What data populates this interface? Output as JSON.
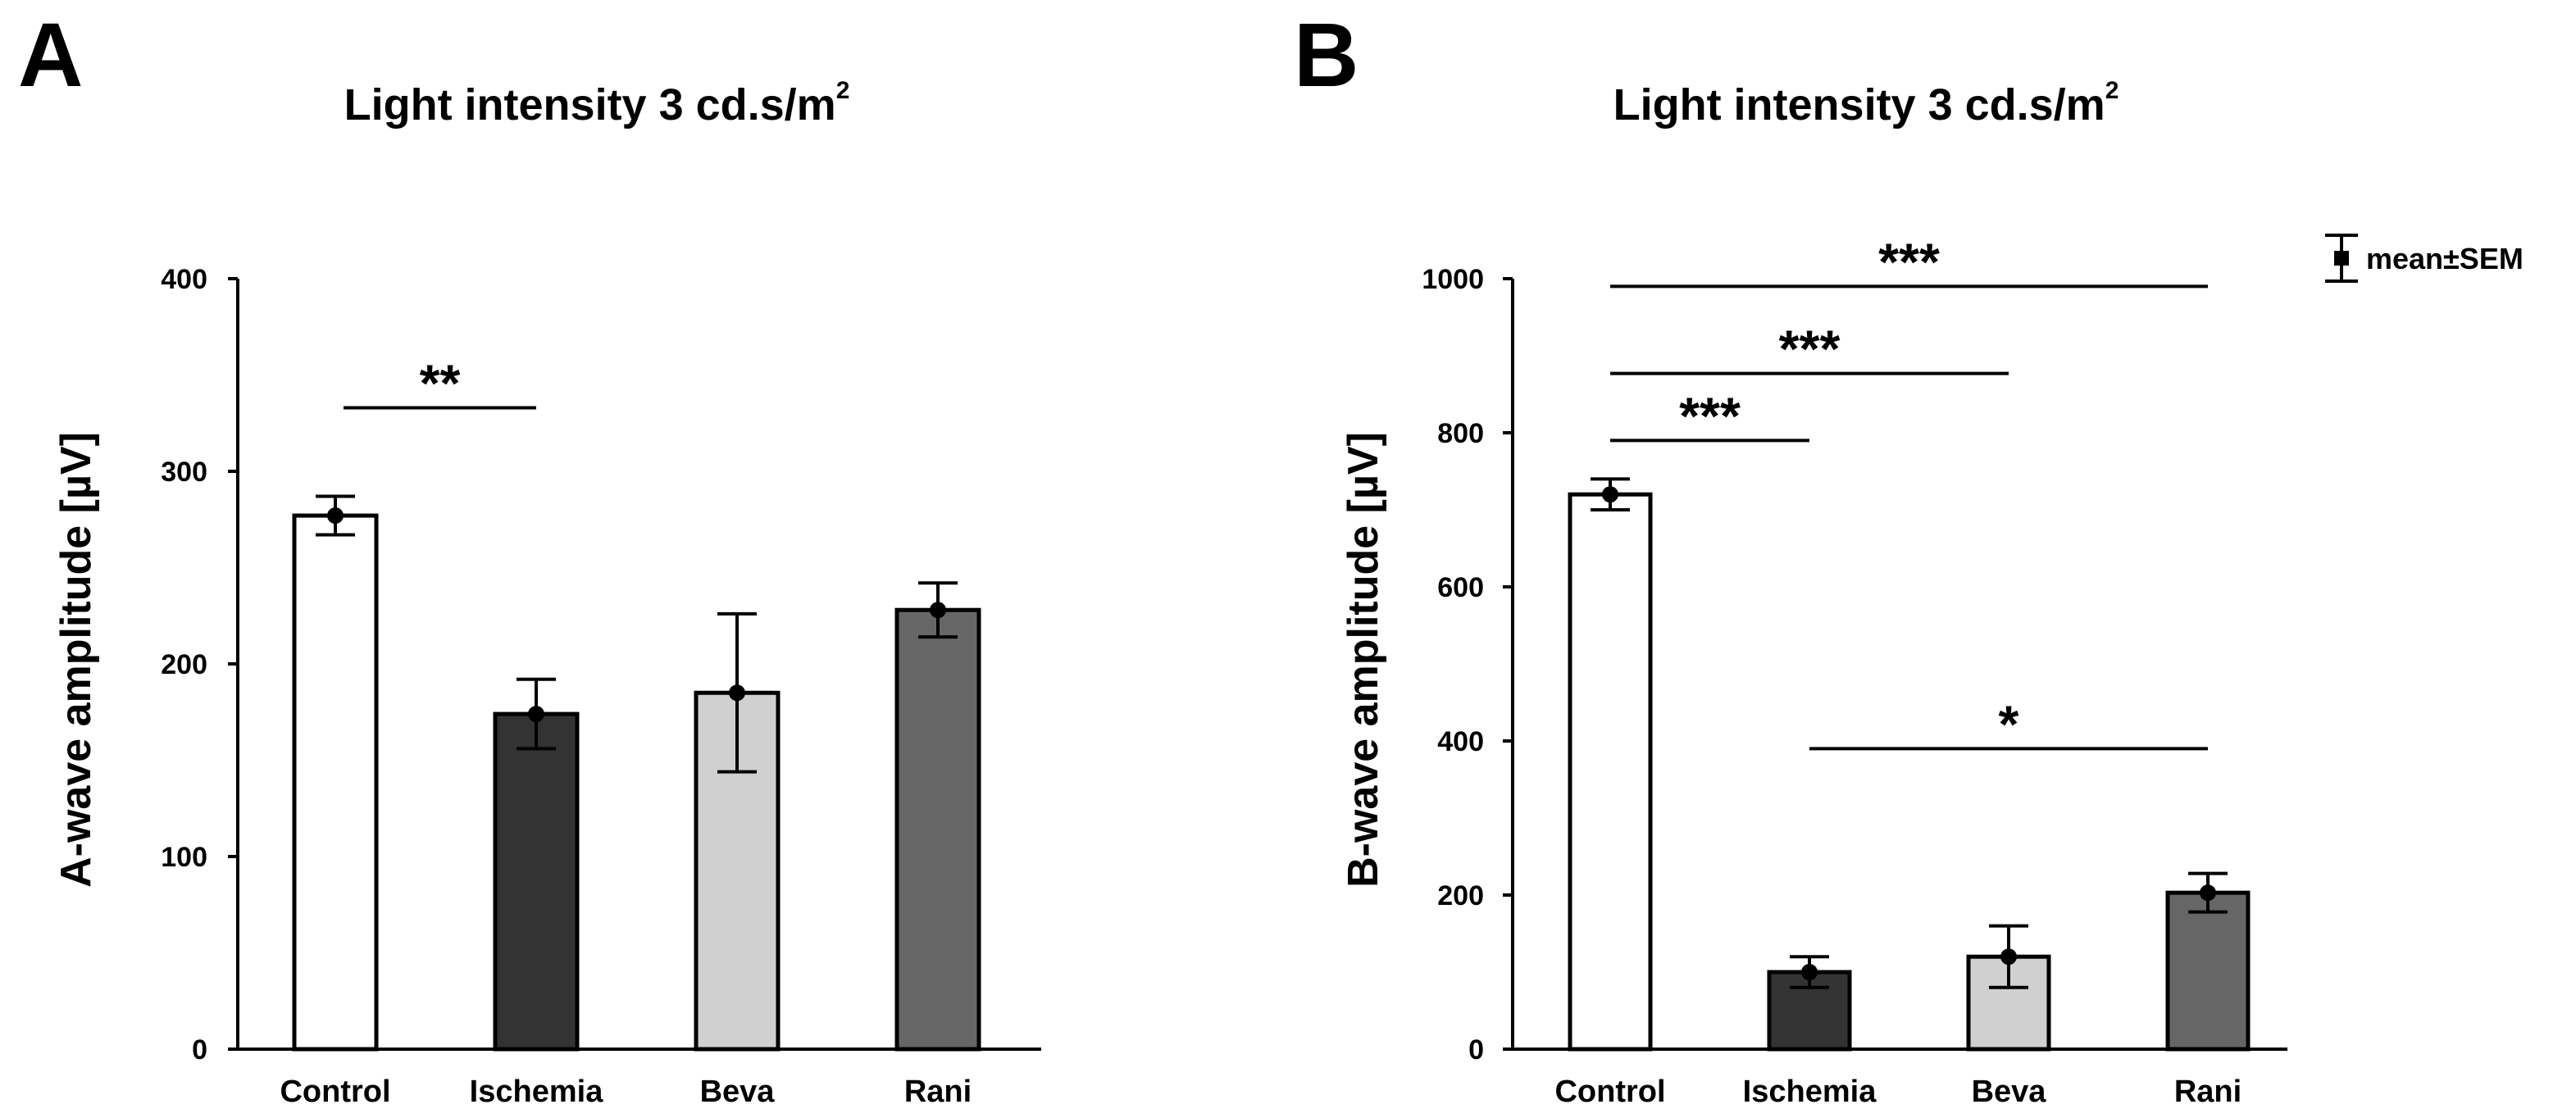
{
  "chart_data": [
    {
      "panel": "A",
      "type": "bar",
      "title": "Light intensity 3 cd.s/m",
      "title_superscript": "2",
      "ylabel": "A-wave amplitude [µV]",
      "xlabel": "",
      "categories": [
        "Control",
        "Ischemia",
        "Beva",
        "Rani"
      ],
      "values": [
        277,
        174,
        185,
        228
      ],
      "sem": [
        10,
        18,
        41,
        14
      ],
      "ylim": [
        0,
        400
      ],
      "yticks": [
        0,
        100,
        200,
        300,
        400
      ],
      "significance": [
        {
          "from": 0,
          "to": 1,
          "label": "**",
          "y": 333
        }
      ]
    },
    {
      "panel": "B",
      "type": "bar",
      "title": "Light intensity 3 cd.s/m",
      "title_superscript": "2",
      "ylabel": "B-wave amplitude [µV]",
      "xlabel": "",
      "categories": [
        "Control",
        "Ischemia",
        "Beva",
        "Rani"
      ],
      "values": [
        720,
        100,
        120,
        203
      ],
      "sem": [
        20,
        20,
        40,
        25
      ],
      "ylim": [
        0,
        1000
      ],
      "yticks": [
        0,
        200,
        400,
        600,
        800,
        1000
      ],
      "significance": [
        {
          "from": 0,
          "to": 3,
          "label": "***",
          "y": 990
        },
        {
          "from": 0,
          "to": 2,
          "label": "***",
          "y": 877
        },
        {
          "from": 0,
          "to": 1,
          "label": "***",
          "y": 790
        },
        {
          "from": 1,
          "to": 3,
          "label": "*",
          "y": 390
        }
      ],
      "legend": {
        "label": "mean±SEM",
        "position": "top-right"
      }
    }
  ],
  "colors": {
    "Control": "#ffffff",
    "Ischemia": "#333333",
    "Beva": "#d0d0d0",
    "Rani": "#666666"
  }
}
